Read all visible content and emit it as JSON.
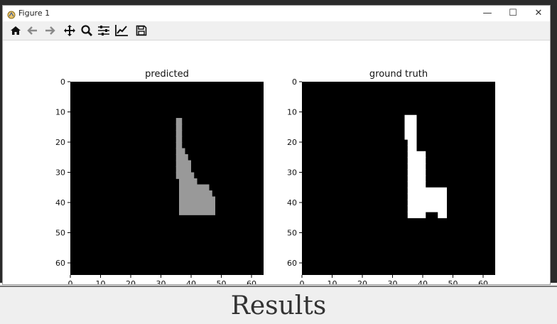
{
  "window": {
    "title": "Figure 1",
    "controls": [
      "—",
      "☐",
      "✕"
    ]
  },
  "toolbar": {
    "tools": [
      {
        "name": "home-icon",
        "tooltip": "Reset original view"
      },
      {
        "name": "back-icon",
        "tooltip": "Back"
      },
      {
        "name": "forward-icon",
        "tooltip": "Forward"
      },
      {
        "name": "pan-icon",
        "tooltip": "Pan"
      },
      {
        "name": "zoom-icon",
        "tooltip": "Zoom"
      },
      {
        "name": "configure-subplots-icon",
        "tooltip": "Configure subplots"
      },
      {
        "name": "edit-axis-icon",
        "tooltip": "Edit axis"
      },
      {
        "name": "save-icon",
        "tooltip": "Save"
      }
    ]
  },
  "caption": "Results",
  "chart_data": [
    {
      "type": "heatmap",
      "title": "predicted",
      "xticks": [
        0,
        10,
        20,
        30,
        40,
        50,
        60
      ],
      "yticks": [
        0,
        10,
        20,
        30,
        40,
        50,
        60
      ],
      "xlim": [
        0,
        64
      ],
      "ylim": [
        64,
        0
      ],
      "colormap": "gray",
      "shape": [
        {
          "row": 12,
          "x0": 35,
          "x1": 37
        },
        {
          "row": 14,
          "x0": 35,
          "x1": 37
        },
        {
          "row": 16,
          "x0": 35,
          "x1": 37
        },
        {
          "row": 18,
          "x0": 35,
          "x1": 37
        },
        {
          "row": 20,
          "x0": 35,
          "x1": 37
        },
        {
          "row": 22,
          "x0": 35,
          "x1": 38
        },
        {
          "row": 24,
          "x0": 35,
          "x1": 39
        },
        {
          "row": 26,
          "x0": 35,
          "x1": 40
        },
        {
          "row": 28,
          "x0": 35,
          "x1": 40
        },
        {
          "row": 30,
          "x0": 35,
          "x1": 41
        },
        {
          "row": 32,
          "x0": 36,
          "x1": 42
        },
        {
          "row": 34,
          "x0": 36,
          "x1": 46
        },
        {
          "row": 36,
          "x0": 36,
          "x1": 47
        },
        {
          "row": 38,
          "x0": 36,
          "x1": 48
        },
        {
          "row": 40,
          "x0": 36,
          "x1": 48
        },
        {
          "row": 42,
          "x0": 36,
          "x1": 48
        }
      ],
      "intensity": 0.6
    },
    {
      "type": "heatmap",
      "title": "ground truth",
      "xticks": [
        0,
        10,
        20,
        30,
        40,
        50,
        60
      ],
      "yticks": [
        0,
        10,
        20,
        30,
        40,
        50,
        60
      ],
      "xlim": [
        0,
        64
      ],
      "ylim": [
        64,
        0
      ],
      "colormap": "gray",
      "shape": [
        {
          "row": 11,
          "x0": 34,
          "x1": 38
        },
        {
          "row": 13,
          "x0": 34,
          "x1": 38
        },
        {
          "row": 15,
          "x0": 34,
          "x1": 38
        },
        {
          "row": 17,
          "x0": 34,
          "x1": 38
        },
        {
          "row": 19,
          "x0": 35,
          "x1": 38
        },
        {
          "row": 21,
          "x0": 35,
          "x1": 38
        },
        {
          "row": 23,
          "x0": 35,
          "x1": 41
        },
        {
          "row": 25,
          "x0": 35,
          "x1": 41
        },
        {
          "row": 27,
          "x0": 35,
          "x1": 41
        },
        {
          "row": 29,
          "x0": 35,
          "x1": 41
        },
        {
          "row": 31,
          "x0": 35,
          "x1": 41
        },
        {
          "row": 33,
          "x0": 35,
          "x1": 41
        },
        {
          "row": 35,
          "x0": 35,
          "x1": 48
        },
        {
          "row": 37,
          "x0": 35,
          "x1": 48
        },
        {
          "row": 39,
          "x0": 35,
          "x1": 48
        },
        {
          "row": 41,
          "x0": 35,
          "x1": 48
        },
        {
          "row": 43,
          "x0": 35,
          "x1": 41
        },
        {
          "row": 43,
          "x0": 45,
          "x1": 48
        }
      ],
      "intensity": 1.0
    }
  ]
}
